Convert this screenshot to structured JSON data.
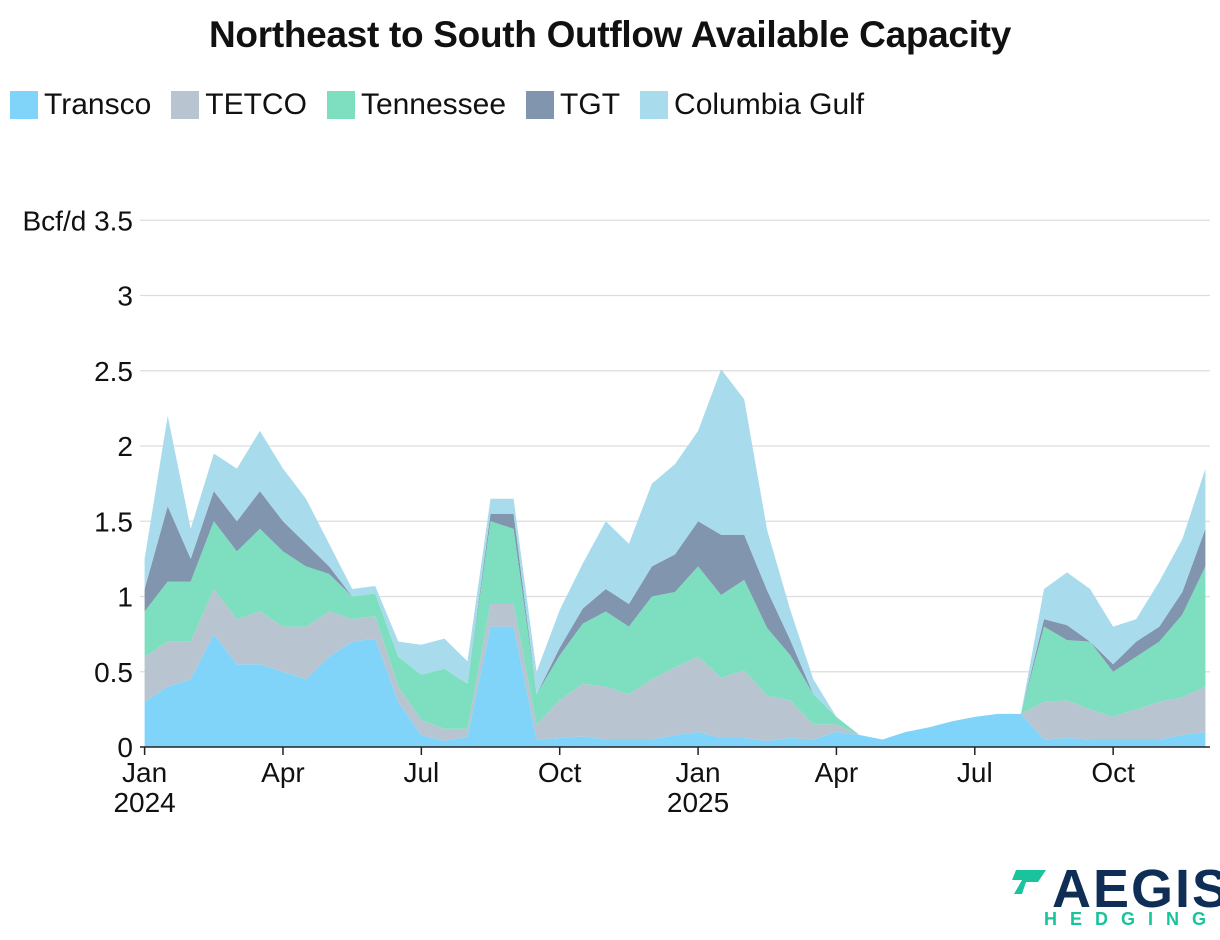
{
  "chart_data": {
    "type": "area",
    "stacked": true,
    "title": "Northeast to South Outflow Available Capacity",
    "ylabel": "Bcf/d",
    "xlabel": "",
    "ylim": [
      0,
      4
    ],
    "yticks": [
      0,
      0.5,
      1,
      1.5,
      2,
      2.5,
      3,
      3.5
    ],
    "ytick_labels": [
      "0",
      "0.5",
      "1",
      "1.5",
      "2",
      "2.5",
      "3",
      "Bcf/d 3.5"
    ],
    "xlim_months": [
      -0.1,
      23.1
    ],
    "xticks": [
      {
        "month": 0,
        "label": "Jan",
        "year": "2024"
      },
      {
        "month": 3,
        "label": "Apr",
        "year": ""
      },
      {
        "month": 6,
        "label": "Jul",
        "year": ""
      },
      {
        "month": 9,
        "label": "Oct",
        "year": ""
      },
      {
        "month": 12,
        "label": "Jan",
        "year": "2025"
      },
      {
        "month": 15,
        "label": "Apr",
        "year": ""
      },
      {
        "month": 18,
        "label": "Jul",
        "year": ""
      },
      {
        "month": 21,
        "label": "Oct",
        "year": ""
      }
    ],
    "grid": true,
    "legend_position": "top-left",
    "x_months": [
      0,
      0.5,
      1,
      1.5,
      2,
      2.5,
      3,
      3.5,
      4,
      4.5,
      5,
      5.5,
      6,
      6.5,
      7,
      7.5,
      8,
      8.5,
      9,
      9.5,
      10,
      10.5,
      11,
      11.5,
      12,
      12.5,
      13,
      13.5,
      14,
      14.5,
      15,
      15.5,
      16,
      16.5,
      17,
      17.5,
      18,
      18.5,
      19,
      19.5,
      20,
      20.5,
      21,
      21.5,
      22,
      22.5,
      23
    ],
    "series": [
      {
        "name": "Transco",
        "color": "#80d4fa",
        "values": [
          0.3,
          0.4,
          0.45,
          0.75,
          0.55,
          0.55,
          0.5,
          0.45,
          0.6,
          0.7,
          0.72,
          0.3,
          0.08,
          0.04,
          0.07,
          0.8,
          0.8,
          0.05,
          0.06,
          0.07,
          0.05,
          0.05,
          0.05,
          0.08,
          0.1,
          0.06,
          0.06,
          0.04,
          0.06,
          0.05,
          0.1,
          0.08,
          0.05,
          0.1,
          0.13,
          0.17,
          0.2,
          0.22,
          0.22,
          0.05,
          0.06,
          0.05,
          0.05,
          0.05,
          0.05,
          0.08,
          0.1
        ]
      },
      {
        "name": "TETCO",
        "color": "#b8c4d0",
        "values": [
          0.3,
          0.3,
          0.25,
          0.3,
          0.3,
          0.35,
          0.3,
          0.35,
          0.3,
          0.15,
          0.15,
          0.1,
          0.1,
          0.08,
          0.05,
          0.15,
          0.15,
          0.1,
          0.25,
          0.35,
          0.35,
          0.3,
          0.4,
          0.45,
          0.5,
          0.4,
          0.45,
          0.3,
          0.25,
          0.1,
          0.05,
          0,
          0,
          0,
          0,
          0,
          0,
          0,
          0,
          0.25,
          0.25,
          0.2,
          0.15,
          0.2,
          0.25,
          0.25,
          0.3
        ]
      },
      {
        "name": "Tennessee",
        "color": "#7ddfc0",
        "values": [
          0.3,
          0.4,
          0.4,
          0.45,
          0.45,
          0.55,
          0.5,
          0.4,
          0.25,
          0.15,
          0.15,
          0.2,
          0.3,
          0.4,
          0.3,
          0.55,
          0.5,
          0.2,
          0.3,
          0.4,
          0.5,
          0.45,
          0.55,
          0.5,
          0.6,
          0.55,
          0.6,
          0.45,
          0.3,
          0.2,
          0.05,
          0,
          0,
          0,
          0,
          0,
          0,
          0,
          0,
          0.5,
          0.4,
          0.45,
          0.3,
          0.35,
          0.4,
          0.55,
          0.8
        ]
      },
      {
        "name": "TGT",
        "color": "#8295af",
        "values": [
          0.15,
          0.5,
          0.15,
          0.2,
          0.2,
          0.25,
          0.2,
          0.15,
          0.05,
          0,
          0,
          0,
          0,
          0,
          0,
          0.05,
          0.1,
          0,
          0.05,
          0.1,
          0.15,
          0.15,
          0.2,
          0.25,
          0.3,
          0.4,
          0.3,
          0.25,
          0.1,
          0,
          0,
          0,
          0,
          0,
          0,
          0,
          0,
          0,
          0,
          0.05,
          0.1,
          0,
          0.05,
          0.1,
          0.1,
          0.15,
          0.25
        ]
      },
      {
        "name": "Columbia Gulf",
        "color": "#a8dcec",
        "values": [
          0.2,
          0.6,
          0.2,
          0.25,
          0.35,
          0.4,
          0.35,
          0.3,
          0.15,
          0.05,
          0.05,
          0.1,
          0.2,
          0.2,
          0.15,
          0.1,
          0.1,
          0.15,
          0.25,
          0.3,
          0.45,
          0.4,
          0.55,
          0.6,
          0.6,
          1.1,
          0.9,
          0.4,
          0.2,
          0.1,
          0,
          0,
          0,
          0,
          0,
          0,
          0,
          0,
          0,
          0.2,
          0.35,
          0.35,
          0.25,
          0.15,
          0.3,
          0.35,
          0.4
        ]
      }
    ]
  },
  "legend": [
    {
      "label": "Transco",
      "color": "#80d4fa"
    },
    {
      "label": "TETCO",
      "color": "#b8c4d0"
    },
    {
      "label": "Tennessee",
      "color": "#7ddfc0"
    },
    {
      "label": "TGT",
      "color": "#8295af"
    },
    {
      "label": "Columbia Gulf",
      "color": "#a8dcec"
    }
  ],
  "logo": {
    "word": "AEGIS",
    "sub": "HEDGING"
  }
}
